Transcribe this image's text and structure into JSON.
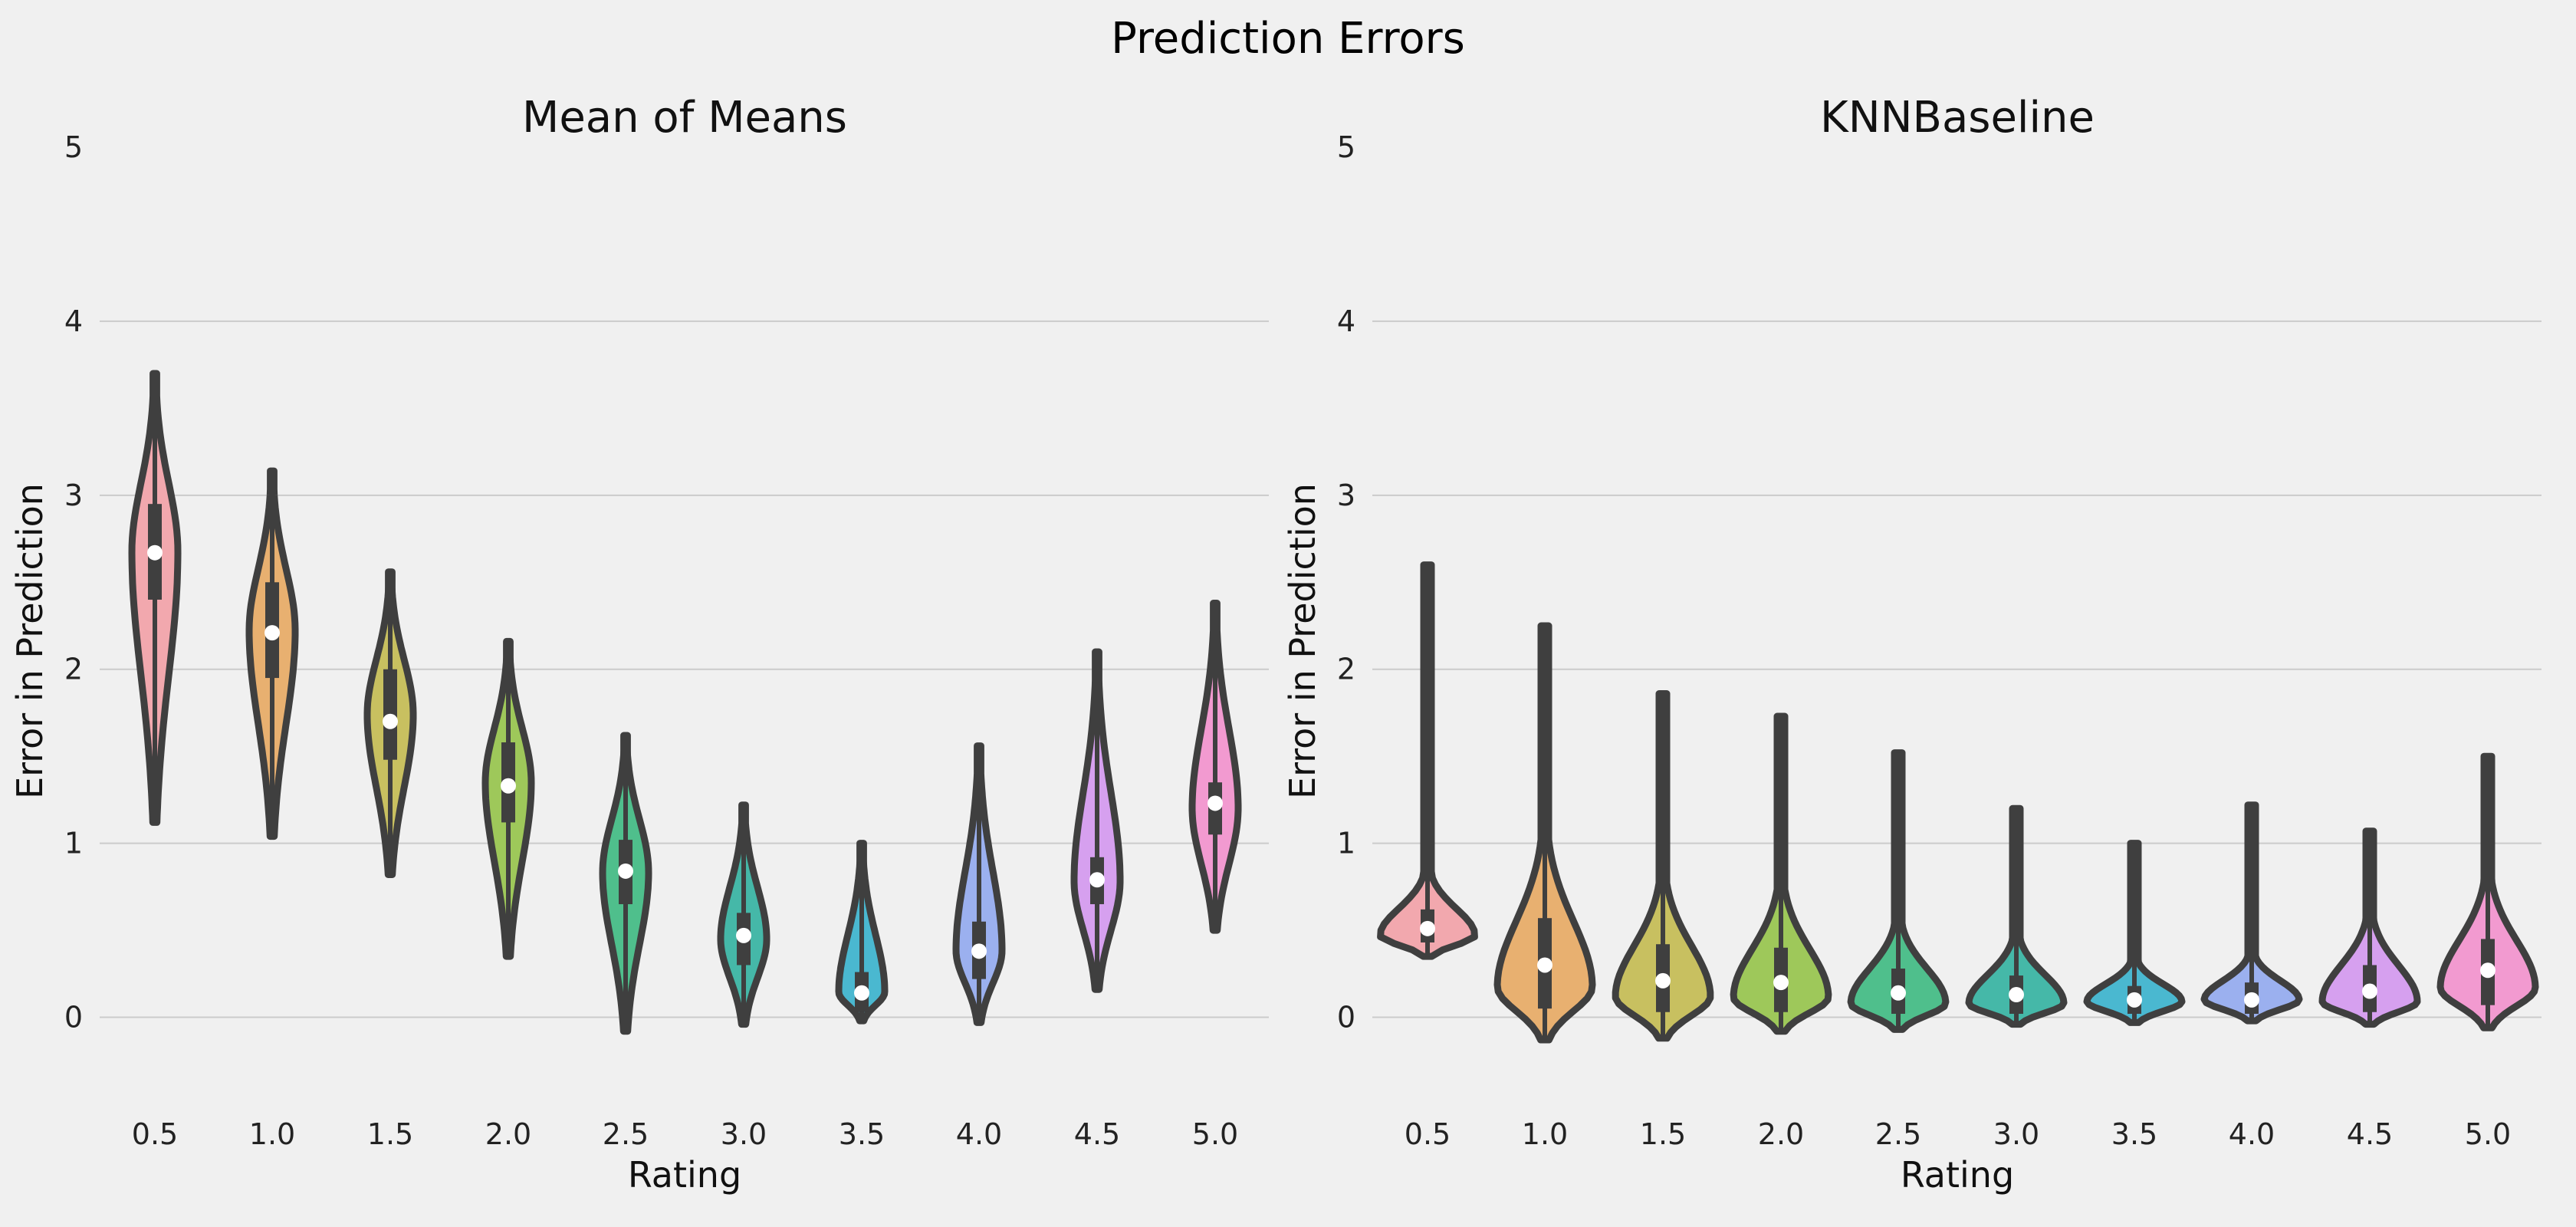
{
  "suptitle": "Prediction Errors",
  "chart_data": [
    {
      "type": "violin",
      "title": "Mean of Means",
      "xlabel": "Rating",
      "ylabel": "Error in Prediction",
      "categories": [
        "0.5",
        "1.0",
        "1.5",
        "2.0",
        "2.5",
        "3.0",
        "3.5",
        "4.0",
        "4.5",
        "5.0"
      ],
      "yticks": [
        0,
        1,
        2,
        3,
        4,
        5
      ],
      "ylim": [
        -0.5,
        5
      ],
      "grid": "y",
      "medians": [
        2.67,
        2.21,
        1.7,
        1.33,
        0.84,
        0.47,
        0.14,
        0.38,
        0.79,
        1.23
      ],
      "mins": [
        1.12,
        1.04,
        0.82,
        0.35,
        -0.08,
        -0.04,
        -0.02,
        -0.03,
        0.16,
        0.5
      ],
      "maxs": [
        3.7,
        3.14,
        2.56,
        2.16,
        1.62,
        1.22,
        1.0,
        1.56,
        2.1,
        2.38
      ],
      "q1": [
        2.4,
        1.95,
        1.48,
        1.12,
        0.65,
        0.3,
        0.03,
        0.22,
        0.65,
        1.05
      ],
      "q3": [
        2.95,
        2.5,
        2.0,
        1.58,
        1.02,
        0.6,
        0.26,
        0.55,
        0.92,
        1.35
      ],
      "colors": [
        "#f2a8ae",
        "#e8b070",
        "#c8c060",
        "#9ec85a",
        "#4fbf8c",
        "#45b8a8",
        "#4ab8d0",
        "#9bb0ef",
        "#d6a0ef",
        "#f29ad0"
      ]
    },
    {
      "type": "violin",
      "title": "KNNBaseline",
      "xlabel": "Rating",
      "ylabel": "Error in Prediction",
      "categories": [
        "0.5",
        "1.0",
        "1.5",
        "2.0",
        "2.5",
        "3.0",
        "3.5",
        "4.0",
        "4.5",
        "5.0"
      ],
      "yticks": [
        0,
        1,
        2,
        3,
        4,
        5
      ],
      "ylim": [
        -0.5,
        5
      ],
      "grid": "y",
      "medians": [
        0.51,
        0.3,
        0.21,
        0.2,
        0.14,
        0.13,
        0.1,
        0.1,
        0.15,
        0.27
      ],
      "mins": [
        0.35,
        -0.13,
        -0.12,
        -0.08,
        -0.07,
        -0.04,
        -0.03,
        -0.02,
        -0.04,
        -0.06
      ],
      "maxs": [
        2.6,
        2.25,
        1.86,
        1.73,
        1.52,
        1.2,
        1.0,
        1.22,
        1.07,
        1.5
      ],
      "q1": [
        0.43,
        0.05,
        0.03,
        0.03,
        0.02,
        0.02,
        0.02,
        0.02,
        0.03,
        0.07
      ],
      "q3": [
        0.62,
        0.57,
        0.42,
        0.4,
        0.28,
        0.24,
        0.18,
        0.2,
        0.3,
        0.45
      ],
      "colors": [
        "#f2a8ae",
        "#e8b070",
        "#c8c060",
        "#9ec85a",
        "#4fbf8c",
        "#45b8a8",
        "#4ab8d0",
        "#9bb0ef",
        "#d6a0ef",
        "#f29ad0"
      ]
    }
  ]
}
